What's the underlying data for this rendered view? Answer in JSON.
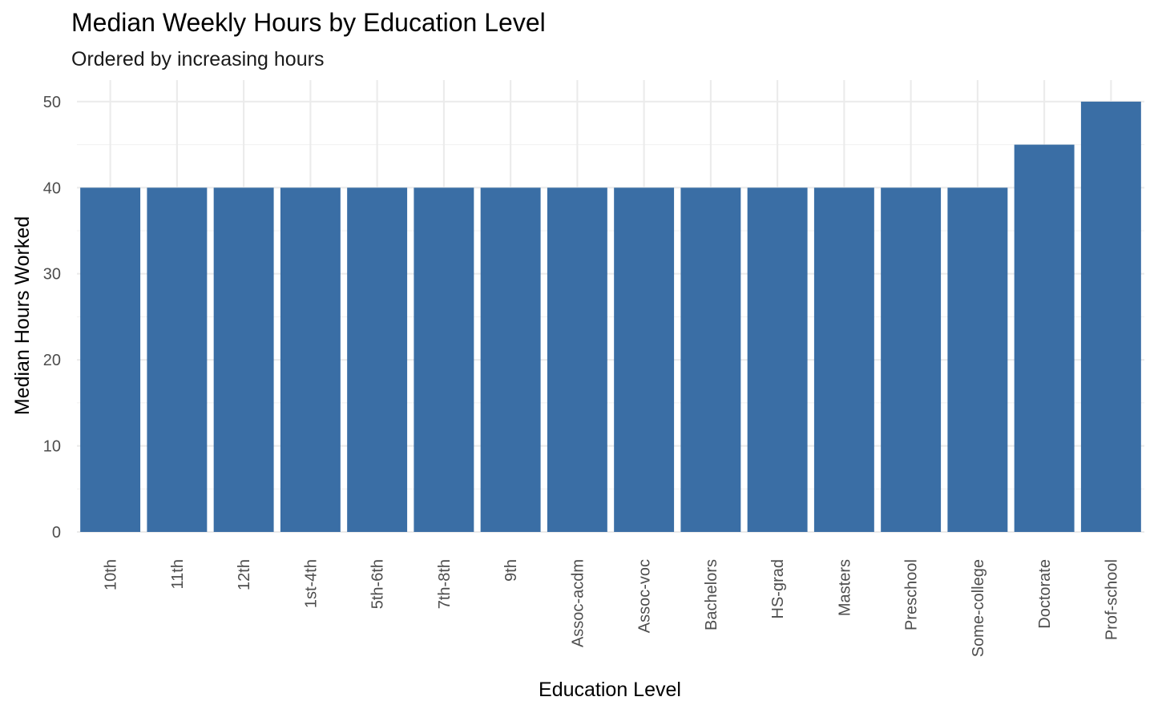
{
  "chart_data": {
    "type": "bar",
    "title": "Median Weekly Hours by Education Level",
    "subtitle": "Ordered by increasing hours",
    "xlabel": "Education Level",
    "ylabel": "Median Hours Worked",
    "categories": [
      "10th",
      "11th",
      "12th",
      "1st-4th",
      "5th-6th",
      "7th-8th",
      "9th",
      "Assoc-acdm",
      "Assoc-voc",
      "Bachelors",
      "HS-grad",
      "Masters",
      "Preschool",
      "Some-college",
      "Doctorate",
      "Prof-school"
    ],
    "values": [
      40,
      40,
      40,
      40,
      40,
      40,
      40,
      40,
      40,
      40,
      40,
      40,
      40,
      40,
      45,
      50
    ],
    "ylim": [
      0,
      52.5
    ],
    "yticks": [
      0,
      10,
      20,
      30,
      40,
      50
    ],
    "grid": true,
    "legend": "none",
    "colors": {
      "bar": "#3a6ea5",
      "grid": "#ebebeb"
    }
  }
}
